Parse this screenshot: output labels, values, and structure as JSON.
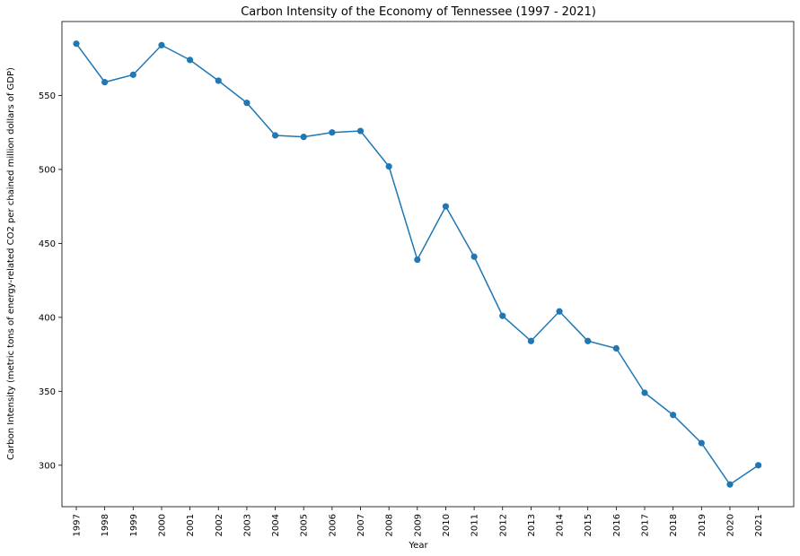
{
  "chart_data": {
    "type": "line",
    "title": "Carbon Intensity of the Economy of Tennessee (1997 - 2021)",
    "xlabel": "Year",
    "ylabel": "Carbon Intensity (metric tons of energy-related CO2 per chained million dollars of GDP)",
    "x": [
      "1997",
      "1998",
      "1999",
      "2000",
      "2001",
      "2002",
      "2003",
      "2004",
      "2005",
      "2006",
      "2007",
      "2008",
      "2009",
      "2010",
      "2011",
      "2012",
      "2013",
      "2014",
      "2015",
      "2016",
      "2017",
      "2018",
      "2019",
      "2020",
      "2021"
    ],
    "series": [
      {
        "values": [
          585,
          559,
          564,
          584,
          574,
          560,
          545,
          523,
          522,
          525,
          526,
          502,
          439,
          475,
          441,
          401,
          384,
          404,
          384,
          379,
          349,
          334,
          315,
          287,
          300
        ]
      }
    ],
    "ylim": [
      272,
      600
    ],
    "yticks": [
      300,
      350,
      400,
      450,
      500,
      550
    ],
    "grid": false,
    "line_color": "#1f77b4",
    "marker_color": "#1f77b4"
  }
}
